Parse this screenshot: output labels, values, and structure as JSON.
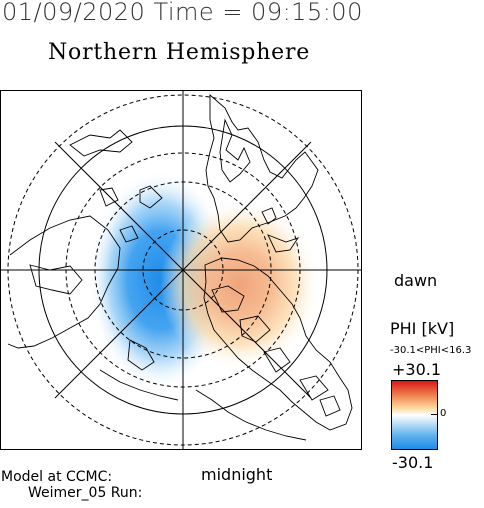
{
  "header": {
    "datetime": "01/09/2020 Time = 09:15:00",
    "title": "Northern Hemisphere"
  },
  "map": {
    "projection": "polar stereographic, magnetic north pole at center",
    "labels": {
      "dawn": "dawn",
      "midnight": "midnight"
    },
    "features": [
      "outer-circle-dashed",
      "latitude-circles",
      "meridian-lines",
      "coastlines",
      "potential-contours"
    ],
    "potential_pattern": {
      "positive_cell": "dawn side, red/orange",
      "negative_cell": "dusk side, blue"
    }
  },
  "colorbar": {
    "quantity": "PHI [kV]",
    "range_text": "-30.1<PHI<16.3",
    "max_label": "+30.1",
    "mid_label": "0",
    "min_label": "-30.1",
    "max_value": 30.1,
    "min_value": -30.1,
    "colors": {
      "max": "#d7191c",
      "mid": "#ffffff",
      "min": "#1e8ce8"
    }
  },
  "footer": {
    "model_label": "Model at CCMC:",
    "run_label": "Weimer_05 Run:"
  }
}
